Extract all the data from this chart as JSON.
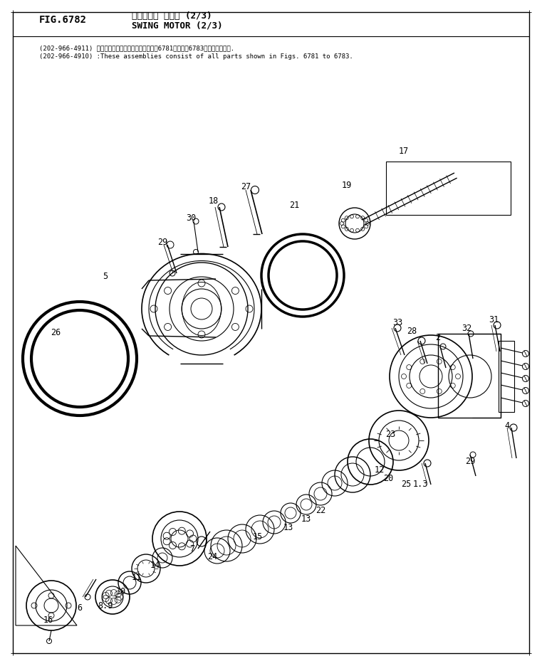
{
  "fig_number": "FIG.6782",
  "title_line1": "スイング・ モータ (2/3)",
  "title_line2": "SWING MOTOR (2/3)",
  "note1": "(202-966-4911) これらのアセンブリの構成部品は囶6781図から囶6783図まで含みます.",
  "note2": "(202-966-4910) :These assemblies consist of all parts shown in Figs. 6781 to 6783.",
  "bg_color": "#ffffff",
  "lc": "#000000"
}
